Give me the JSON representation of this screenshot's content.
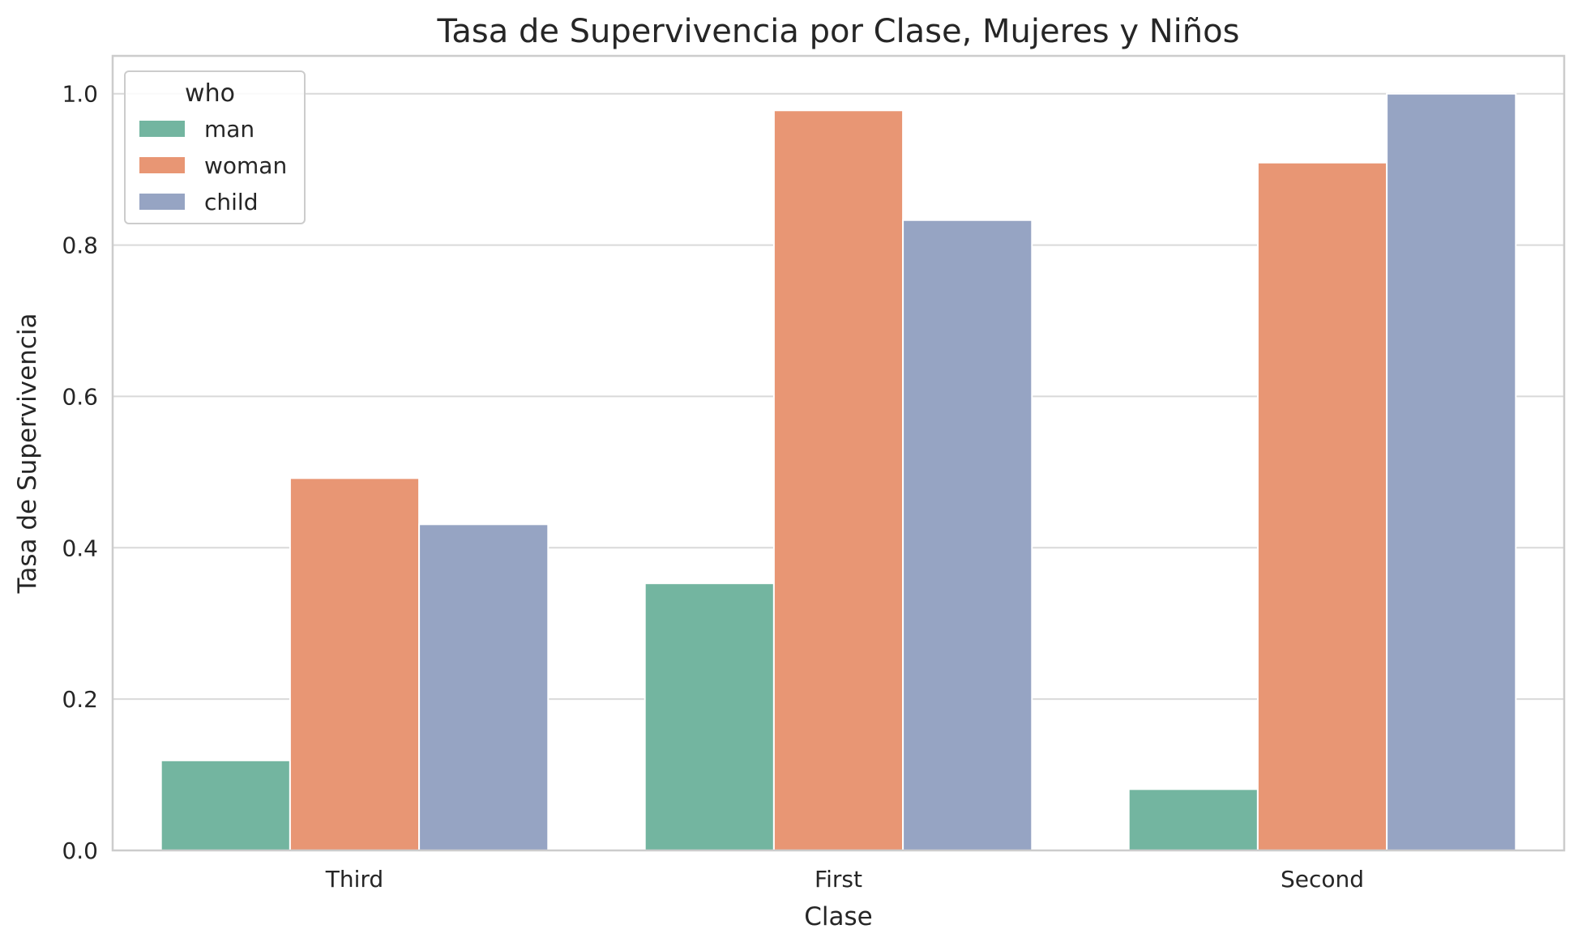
{
  "chart_data": {
    "type": "bar",
    "title": "Tasa de Supervivencia por Clase, Mujeres y Niños",
    "xlabel": "Clase",
    "ylabel": "Tasa de Supervivencia",
    "categories": [
      "Third",
      "First",
      "Second"
    ],
    "series": [
      {
        "name": "man",
        "values": [
          0.119,
          0.353,
          0.081
        ],
        "color": "#73b5a0"
      },
      {
        "name": "woman",
        "values": [
          0.492,
          0.978,
          0.909
        ],
        "color": "#e89674"
      },
      {
        "name": "child",
        "values": [
          0.431,
          0.833,
          1.0
        ],
        "color": "#96a4c3"
      }
    ],
    "ylim": [
      0,
      1.05
    ],
    "yticks": [
      0.0,
      0.2,
      0.4,
      0.6,
      0.8,
      1.0
    ],
    "ytick_labels": [
      "0.0",
      "0.2",
      "0.4",
      "0.6",
      "0.8",
      "1.0"
    ],
    "grid": true,
    "legend": {
      "title": "who",
      "placement": "top-left"
    }
  }
}
